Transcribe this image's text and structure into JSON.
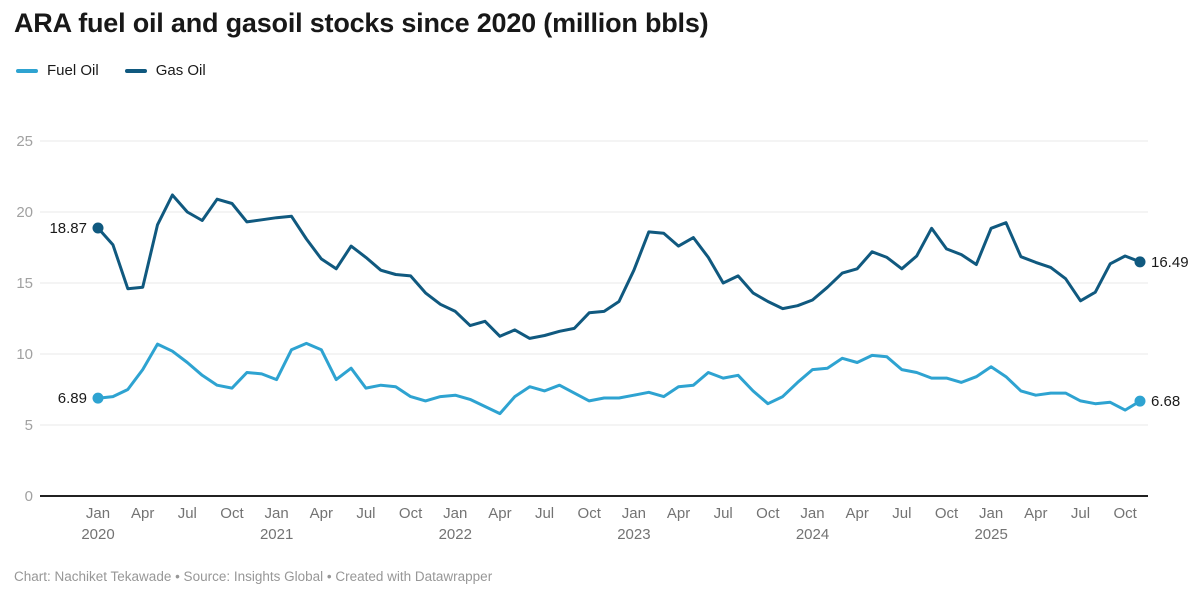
{
  "header": {
    "title": "ARA fuel oil and gasoil stocks since 2020 (million bbls)"
  },
  "footer": {
    "text": "Chart: Nachiket Tekawade • Source: Insights Global • Created with Datawrapper"
  },
  "colors": {
    "fuel_oil": "#2EA3D1",
    "gas_oil": "#10597F",
    "gridline": "#e8e8e8",
    "baseline": "#212121",
    "y_tick_text": "#a1a1a1",
    "x_tick_text": "#737373",
    "value_label_text": "#1a1a1a"
  },
  "chart_data": {
    "type": "line",
    "title": "ARA fuel oil and gasoil stocks since 2020 (million bbls)",
    "x_unit": "month",
    "x_start": "2020-01",
    "x_end": "2025-11",
    "point_count": 71,
    "ylim": [
      0,
      27
    ],
    "y_ticks": [
      0,
      5,
      10,
      15,
      20,
      25
    ],
    "grid": true,
    "legend_position": "top-left",
    "x_ticks": [
      {
        "index": 0,
        "label": "Jan",
        "year": "2020"
      },
      {
        "index": 3,
        "label": "Apr"
      },
      {
        "index": 6,
        "label": "Jul"
      },
      {
        "index": 9,
        "label": "Oct"
      },
      {
        "index": 12,
        "label": "Jan",
        "year": "2021"
      },
      {
        "index": 15,
        "label": "Apr"
      },
      {
        "index": 18,
        "label": "Jul"
      },
      {
        "index": 21,
        "label": "Oct"
      },
      {
        "index": 24,
        "label": "Jan",
        "year": "2022"
      },
      {
        "index": 27,
        "label": "Apr"
      },
      {
        "index": 30,
        "label": "Jul"
      },
      {
        "index": 33,
        "label": "Oct"
      },
      {
        "index": 36,
        "label": "Jan",
        "year": "2023"
      },
      {
        "index": 39,
        "label": "Apr"
      },
      {
        "index": 42,
        "label": "Jul"
      },
      {
        "index": 45,
        "label": "Oct"
      },
      {
        "index": 48,
        "label": "Jan",
        "year": "2024"
      },
      {
        "index": 51,
        "label": "Apr"
      },
      {
        "index": 54,
        "label": "Jul"
      },
      {
        "index": 57,
        "label": "Oct"
      },
      {
        "index": 60,
        "label": "Jan",
        "year": "2025"
      },
      {
        "index": 63,
        "label": "Apr"
      },
      {
        "index": 66,
        "label": "Jul"
      },
      {
        "index": 69,
        "label": "Oct"
      }
    ],
    "series": [
      {
        "name": "Fuel Oil",
        "color": "#2EA3D1",
        "start_label": "6.89",
        "end_label": "6.68",
        "values": [
          6.89,
          7.0,
          7.5,
          8.9,
          10.7,
          10.2,
          9.4,
          8.5,
          7.8,
          7.6,
          8.7,
          8.6,
          8.2,
          10.3,
          10.75,
          10.3,
          8.2,
          9.0,
          7.6,
          7.8,
          7.7,
          7.0,
          6.7,
          7.0,
          7.1,
          6.8,
          6.3,
          5.8,
          7.0,
          7.7,
          7.4,
          7.8,
          7.25,
          6.7,
          6.9,
          6.9,
          7.1,
          7.3,
          7.0,
          7.7,
          7.8,
          8.7,
          8.3,
          8.5,
          7.4,
          6.5,
          7.0,
          8.0,
          8.9,
          9.0,
          9.7,
          9.4,
          9.9,
          9.8,
          8.9,
          8.7,
          8.3,
          8.3,
          8.0,
          8.4,
          9.1,
          8.4,
          7.4,
          7.1,
          7.25,
          7.25,
          6.7,
          6.5,
          6.6,
          6.05,
          6.68
        ]
      },
      {
        "name": "Gas Oil",
        "color": "#10597F",
        "start_label": "18.87",
        "end_label": "16.49",
        "values": [
          18.87,
          17.7,
          14.6,
          14.7,
          19.1,
          21.2,
          20.0,
          19.4,
          20.9,
          20.6,
          19.3,
          19.45,
          19.6,
          19.7,
          18.1,
          16.7,
          16.0,
          17.6,
          16.8,
          15.9,
          15.6,
          15.5,
          14.3,
          13.5,
          13.0,
          12.0,
          12.3,
          11.25,
          11.7,
          11.1,
          11.3,
          11.6,
          11.8,
          12.9,
          13.0,
          13.7,
          15.9,
          18.6,
          18.5,
          17.6,
          18.2,
          16.8,
          15.0,
          15.5,
          14.3,
          13.7,
          13.2,
          13.4,
          13.8,
          14.7,
          15.7,
          16.0,
          17.2,
          16.8,
          16.0,
          16.9,
          18.85,
          17.4,
          17.0,
          16.3,
          18.85,
          19.25,
          16.85,
          16.45,
          16.1,
          15.3,
          13.75,
          14.35,
          16.35,
          16.9,
          16.49
        ]
      }
    ]
  }
}
